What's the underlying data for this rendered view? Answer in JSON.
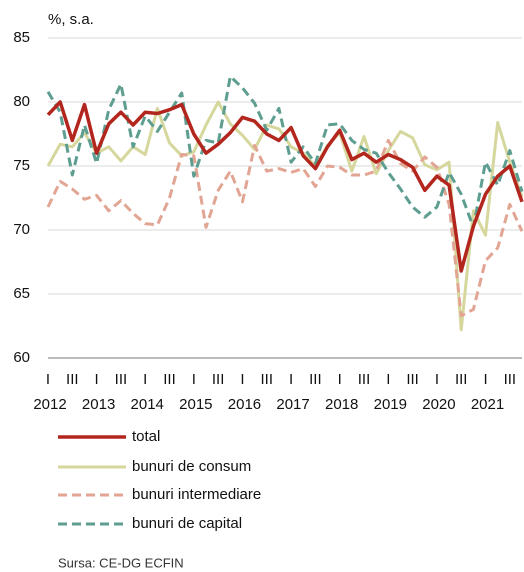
{
  "chart_data": {
    "type": "line",
    "y_label": "%, s.a.",
    "source": "Sursa: CE-DG  ECFIN",
    "categories": [
      "I",
      null,
      "III",
      null,
      "I",
      null,
      "III",
      null,
      "I",
      null,
      "III",
      null,
      "I",
      null,
      "III",
      null,
      "I",
      null,
      "III",
      null,
      "I",
      null,
      "III",
      null,
      "I",
      null,
      "III",
      null,
      "I",
      null,
      "III",
      null,
      "I",
      null,
      "III",
      null,
      "I",
      null,
      "III",
      null
    ],
    "years": [
      "2012",
      "2013",
      "2014",
      "2015",
      "2016",
      "2017",
      "2018",
      "2019",
      "2020",
      "2021"
    ],
    "ylim": [
      60,
      85
    ],
    "yticks": [
      60,
      65,
      70,
      75,
      80,
      85
    ],
    "grid": true,
    "series": [
      {
        "name": "total",
        "color": "#b3261e",
        "dashed": false,
        "values": [
          79,
          80,
          77,
          79.8,
          76,
          78.3,
          79.2,
          78.2,
          79.2,
          79.1,
          79.4,
          79.8,
          77.5,
          76,
          76.7,
          77.6,
          78.8,
          78.5,
          77.5,
          77,
          78,
          75.8,
          74.8,
          76.5,
          77.8,
          75.5,
          76,
          75.3,
          75.9,
          75.5,
          74.9,
          73.1,
          74.2,
          73.5,
          66.8,
          70.3,
          72.8,
          74.2,
          75,
          72.2
        ]
      },
      {
        "name": "bunuri de consum",
        "color": "#d5d79c",
        "dashed": false,
        "values": [
          75,
          76.7,
          76.5,
          77.6,
          76,
          76.5,
          75.4,
          76.5,
          75.9,
          79.5,
          76.8,
          75.8,
          76.1,
          78.2,
          80,
          78.3,
          77.4,
          76.3,
          78.2,
          77.9,
          76.5,
          76,
          75,
          76.6,
          77.6,
          74.6,
          77.3,
          74.4,
          76.2,
          77.7,
          77.2,
          75.1,
          74.7,
          75.3,
          62.2,
          71.5,
          69.6,
          78.4,
          75.3,
          72.6
        ]
      },
      {
        "name": "bunuri intermediare",
        "color": "#e2a594",
        "dashed": true,
        "values": [
          71.8,
          73.8,
          73.2,
          72.4,
          72.7,
          71.5,
          72.3,
          71.3,
          70.5,
          70.4,
          72.5,
          75.9,
          75.8,
          70.2,
          73.1,
          74.6,
          72.2,
          76.6,
          74.6,
          74.8,
          74.5,
          74.8,
          73.4,
          75,
          74.9,
          74.3,
          74.3,
          74.6,
          77,
          75.2,
          74.6,
          75.7,
          74.9,
          72,
          63.3,
          63.8,
          67.6,
          68.6,
          72,
          69.9
        ]
      },
      {
        "name": "bunuri de capital",
        "color": "#5e9e91",
        "dashed": true,
        "values": [
          80.8,
          79.2,
          74.3,
          78.2,
          75.2,
          79.4,
          81.4,
          76.5,
          78.9,
          77.7,
          79.2,
          80.7,
          74.2,
          77,
          76.8,
          82,
          81.1,
          79.9,
          77.8,
          79.5,
          75.3,
          76.5,
          75.2,
          78.2,
          78.3,
          77,
          76.3,
          76,
          74.5,
          73.2,
          71.8,
          71,
          71.8,
          74.5,
          72.8,
          70.2,
          75.3,
          73.5,
          76.2,
          73
        ]
      }
    ]
  }
}
